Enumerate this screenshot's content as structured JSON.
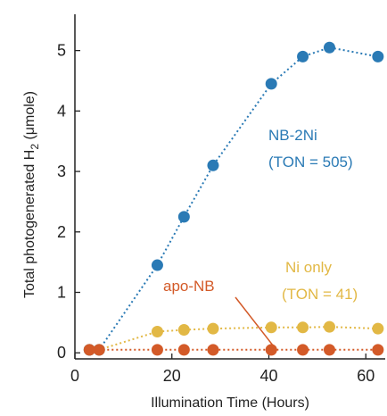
{
  "chart_data": {
    "type": "line",
    "xlabel": "Illumination Time (Hours)",
    "ylabel_main": "Total photogenerated H",
    "ylabel_sub": "2",
    "ylabel_unit": " (μmole)",
    "xlim": [
      0,
      64
    ],
    "ylim": [
      -0.1,
      5.6
    ],
    "xticks": [
      0,
      20,
      40,
      60
    ],
    "yticks": [
      0,
      1,
      2,
      3,
      4,
      5
    ],
    "grid": false,
    "series": [
      {
        "id": "nb2ni",
        "color": "#2a7ab5",
        "label_line1": "NB-2Ni",
        "label_line2": "(TON = 505)",
        "x": [
          3,
          5,
          17,
          22.5,
          28.5,
          40.5,
          47,
          52.5,
          62.5
        ],
        "y": [
          0.05,
          0.05,
          1.45,
          2.25,
          3.1,
          4.45,
          4.9,
          5.05,
          4.9
        ]
      },
      {
        "id": "nionly",
        "color": "#e2b845",
        "label_line1": "Ni only",
        "label_line2": "(TON = 41)",
        "x": [
          3,
          5,
          17,
          22.5,
          28.5,
          40.5,
          47,
          52.5,
          62.5
        ],
        "y": [
          0.05,
          0.05,
          0.35,
          0.38,
          0.4,
          0.42,
          0.42,
          0.43,
          0.4
        ]
      },
      {
        "id": "aponb",
        "color": "#d35a28",
        "label_line1": "apo-NB",
        "label_line2": "",
        "x": [
          3,
          5,
          17,
          22.5,
          28.5,
          40.5,
          47,
          52.5,
          62.5
        ],
        "y": [
          0.05,
          0.05,
          0.05,
          0.05,
          0.05,
          0.05,
          0.05,
          0.05,
          0.05
        ]
      }
    ]
  }
}
